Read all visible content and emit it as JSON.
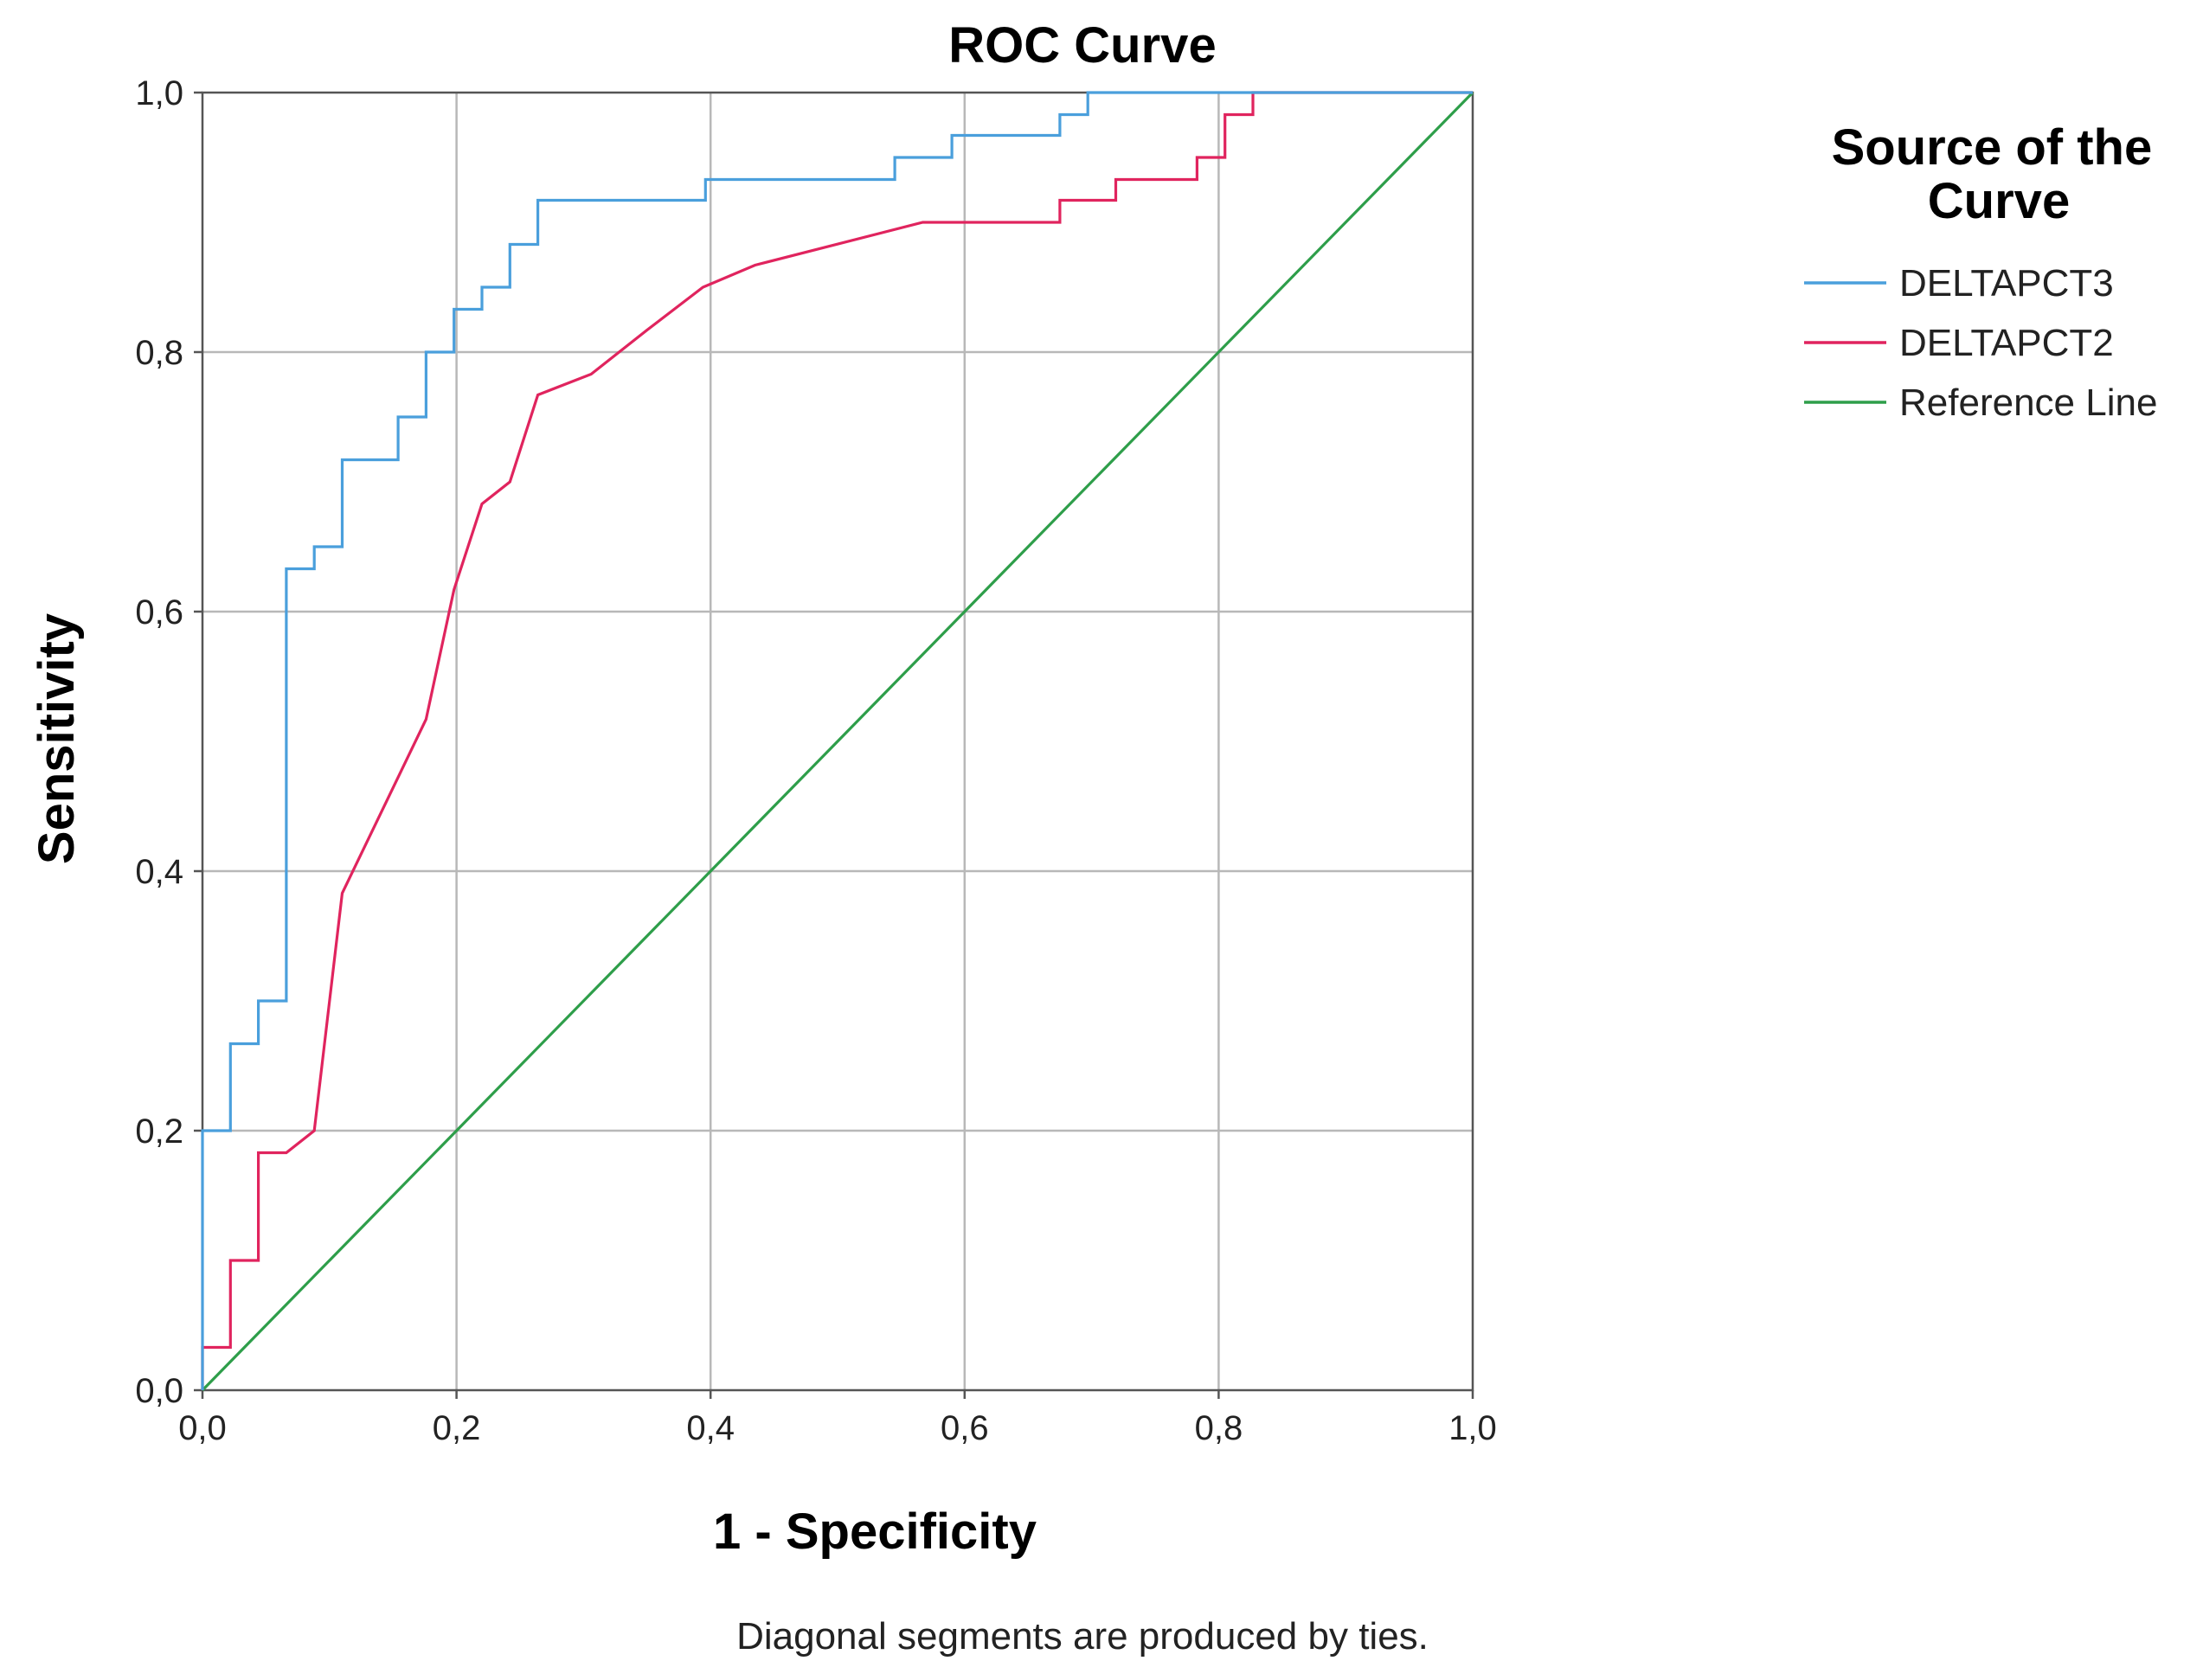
{
  "chart_data": {
    "type": "line",
    "title": "ROC Curve",
    "xlabel": "1 - Specificity",
    "ylabel": "Sensitivity",
    "xlim": [
      0,
      1
    ],
    "ylim": [
      0,
      1
    ],
    "grid": true,
    "xticks": [
      "0,0",
      "0,2",
      "0,4",
      "0,6",
      "0,8",
      "1,0"
    ],
    "yticks": [
      "0,0",
      "0,2",
      "0,4",
      "0,6",
      "0,8",
      "1,0"
    ],
    "legend_title": "Source of the Curve",
    "legend_position": "right",
    "footnote": "Diagonal segments are produced by ties.",
    "series": [
      {
        "name": "DELTAPCT3",
        "color": "#4a9fdc",
        "x": [
          0,
          0,
          0.022,
          0.022,
          0.044,
          0.044,
          0.066,
          0.066,
          0.088,
          0.088,
          0.11,
          0.11,
          0.154,
          0.154,
          0.176,
          0.176,
          0.198,
          0.198,
          0.22,
          0.22,
          0.242,
          0.242,
          0.264,
          0.264,
          0.396,
          0.396,
          0.545,
          0.545,
          0.59,
          0.59,
          0.675,
          0.675,
          0.697,
          0.697,
          1.0
        ],
        "y": [
          0,
          0.2,
          0.2,
          0.267,
          0.267,
          0.3,
          0.3,
          0.633,
          0.633,
          0.65,
          0.65,
          0.717,
          0.717,
          0.75,
          0.75,
          0.8,
          0.8,
          0.833,
          0.833,
          0.85,
          0.85,
          0.883,
          0.883,
          0.917,
          0.917,
          0.933,
          0.933,
          0.95,
          0.95,
          0.967,
          0.967,
          0.983,
          0.983,
          1.0,
          1.0
        ]
      },
      {
        "name": "DELTAPCT2",
        "color": "#e0245e",
        "x": [
          0,
          0,
          0.022,
          0.022,
          0.044,
          0.044,
          0.066,
          0.088,
          0.088,
          0.11,
          0.11,
          0.176,
          0.176,
          0.198,
          0.198,
          0.22,
          0.22,
          0.242,
          0.242,
          0.264,
          0.264,
          0.306,
          0.306,
          0.35,
          0.35,
          0.394,
          0.394,
          0.435,
          0.435,
          0.567,
          0.675,
          0.675,
          0.719,
          0.719,
          0.783,
          0.783,
          0.805,
          0.805,
          0.827,
          0.827,
          1.0
        ],
        "y": [
          0,
          0.033,
          0.033,
          0.1,
          0.1,
          0.183,
          0.183,
          0.2,
          0.2,
          0.383,
          0.383,
          0.517,
          0.517,
          0.617,
          0.617,
          0.683,
          0.683,
          0.7,
          0.7,
          0.767,
          0.767,
          0.783,
          0.783,
          0.817,
          0.817,
          0.85,
          0.85,
          0.867,
          0.867,
          0.9,
          0.9,
          0.917,
          0.917,
          0.933,
          0.933,
          0.95,
          0.95,
          0.983,
          0.983,
          1.0,
          1.0
        ]
      },
      {
        "name": "Reference Line",
        "color": "#2e9e4a",
        "x": [
          0,
          1
        ],
        "y": [
          0,
          1
        ]
      }
    ]
  }
}
